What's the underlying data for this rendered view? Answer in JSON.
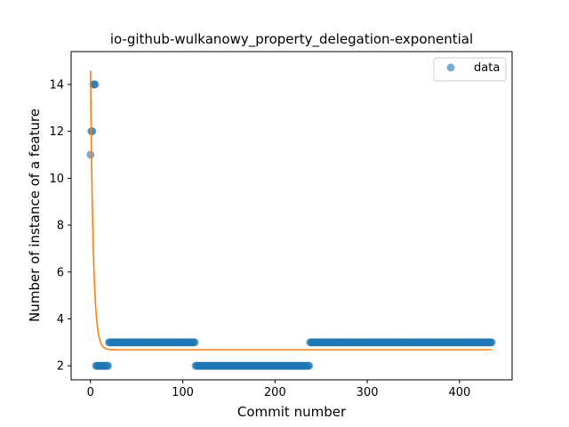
{
  "chart_data": {
    "type": "scatter",
    "title": "io-github-wulkanowy_property_delegation-exponential",
    "xlabel": "Commit number",
    "ylabel": "Number of instance of a feature",
    "xlim": [
      -21,
      457
    ],
    "ylim": [
      1.4,
      15.4
    ],
    "xticks": [
      0,
      100,
      200,
      300,
      400
    ],
    "yticks": [
      2,
      4,
      6,
      8,
      10,
      12,
      14
    ],
    "grid": false,
    "legend_position": "top-right",
    "series": [
      {
        "name": "data",
        "kind": "scatter",
        "color": "#1f77b4",
        "segments": [
          {
            "x_start": 0,
            "x_end": 0,
            "y": 11
          },
          {
            "x_start": 1,
            "x_end": 2,
            "y": 12
          },
          {
            "x_start": 3,
            "x_end": 5,
            "y": 14
          },
          {
            "x_start": 6,
            "x_end": 19,
            "y": 2
          },
          {
            "x_start": 20,
            "x_end": 113,
            "y": 3
          },
          {
            "x_start": 114,
            "x_end": 237,
            "y": 2
          },
          {
            "x_start": 238,
            "x_end": 435,
            "y": 3
          }
        ]
      },
      {
        "kind": "fit",
        "color": "#ff7f0e",
        "model": "exponential",
        "a": 11.9,
        "b": 0.33,
        "c": 2.68,
        "x_range": [
          0,
          435
        ]
      }
    ]
  }
}
